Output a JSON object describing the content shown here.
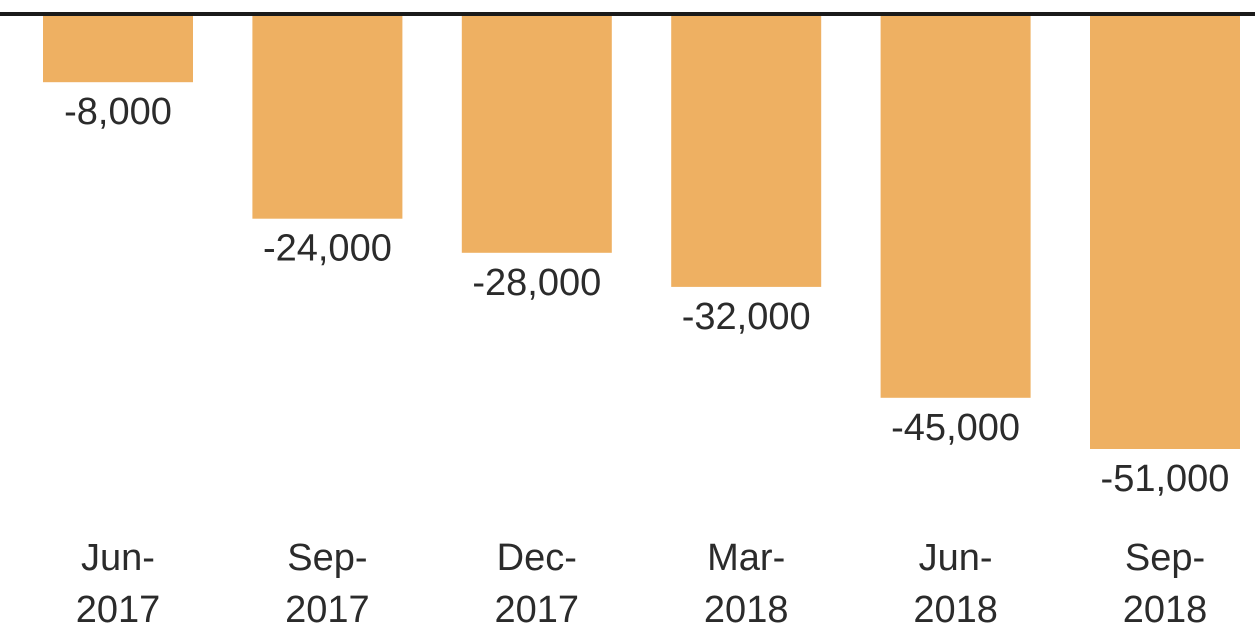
{
  "chart_data": {
    "type": "bar",
    "categories": [
      "Jun-2017",
      "Sep-2017",
      "Dec-2017",
      "Mar-2018",
      "Jun-2018",
      "Sep-2018"
    ],
    "tick_labels": [
      [
        "Jun-",
        "2017"
      ],
      [
        "Sep-",
        "2017"
      ],
      [
        "Dec-",
        "2017"
      ],
      [
        "Mar-",
        "2018"
      ],
      [
        "Jun-",
        "2018"
      ],
      [
        "Sep-",
        "2018"
      ]
    ],
    "values": [
      -8000,
      -24000,
      -28000,
      -32000,
      -45000,
      -51000
    ],
    "data_labels": [
      "-8,000",
      "-24,000",
      "-28,000",
      "-32,000",
      "-45,000",
      "-51,000"
    ],
    "title": "",
    "xlabel": "",
    "ylabel": "",
    "ylim": [
      -51000,
      0
    ],
    "grid": false,
    "legend": "none",
    "colors": {
      "bar": "#eeb062",
      "baseline": "#1a1a1a",
      "text": "#2b2b2b"
    }
  }
}
